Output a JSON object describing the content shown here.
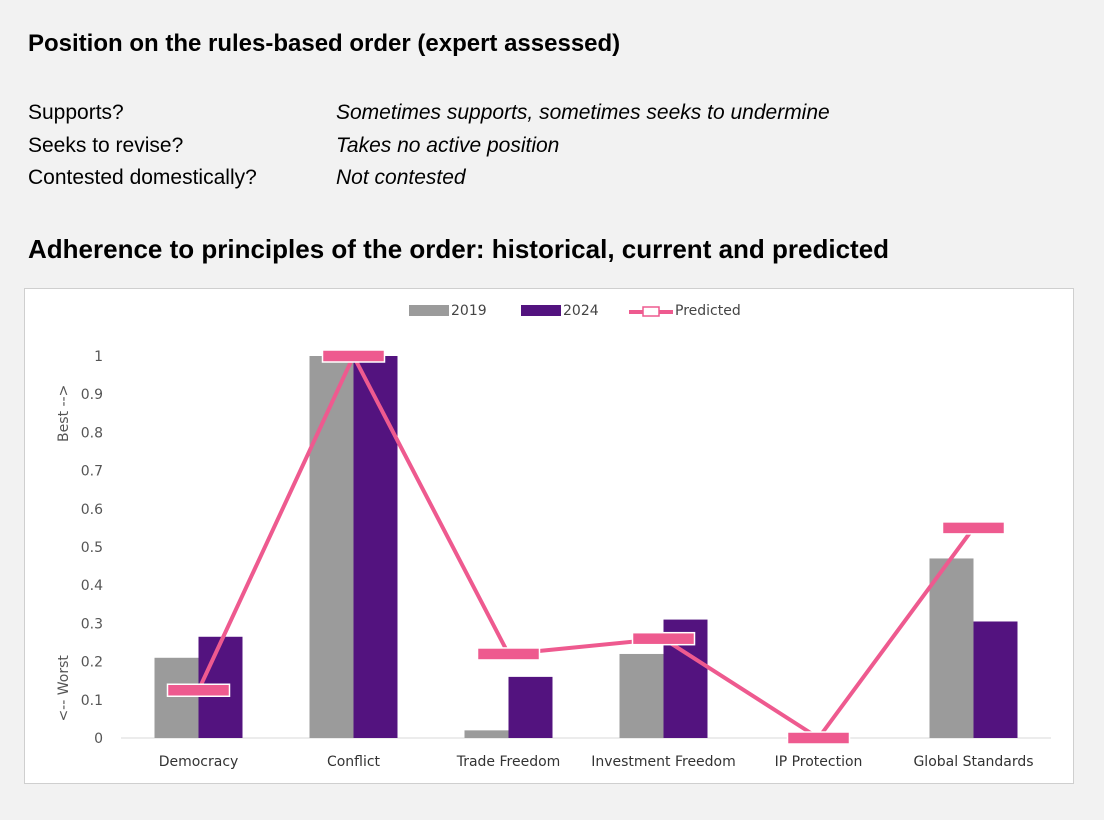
{
  "position": {
    "title": "Position on the rules-based order (expert assessed)",
    "rows": [
      {
        "question": "Supports?",
        "answer": "Sometimes supports, sometimes seeks to undermine"
      },
      {
        "question": "Seeks to revise?",
        "answer": "Takes no active position"
      },
      {
        "question": "Contested domestically?",
        "answer": "Not contested"
      }
    ]
  },
  "adherence": {
    "title": "Adherence to principles of the order: historical, current and predicted"
  },
  "colors": {
    "series_2019": "#9b9b9b",
    "series_2024": "#53137f",
    "predicted": "#ee5a8f"
  },
  "chart_data": {
    "type": "bar",
    "categories": [
      "Democracy",
      "Conflict",
      "Trade Freedom",
      "Investment Freedom",
      "IP Protection",
      "Global Standards"
    ],
    "series": [
      {
        "name": "2019",
        "type": "bar",
        "values": [
          0.21,
          1.0,
          0.02,
          0.22,
          0.0,
          0.47
        ]
      },
      {
        "name": "2024",
        "type": "bar",
        "values": [
          0.265,
          1.0,
          0.16,
          0.31,
          0.0,
          0.305
        ]
      },
      {
        "name": "Predicted",
        "type": "line",
        "values": [
          0.125,
          1.0,
          0.22,
          0.26,
          0.0,
          0.55
        ]
      }
    ],
    "ylim": [
      0,
      1
    ],
    "yticks": [
      "0",
      "0.1",
      "0.2",
      "0.3",
      "0.4",
      "0.5",
      "0.6",
      "0.7",
      "0.8",
      "0.9",
      "1"
    ],
    "ylabel_top": "Best -->",
    "ylabel_bottom": "<-- Worst",
    "legend_position": "top-center",
    "grid": false
  }
}
